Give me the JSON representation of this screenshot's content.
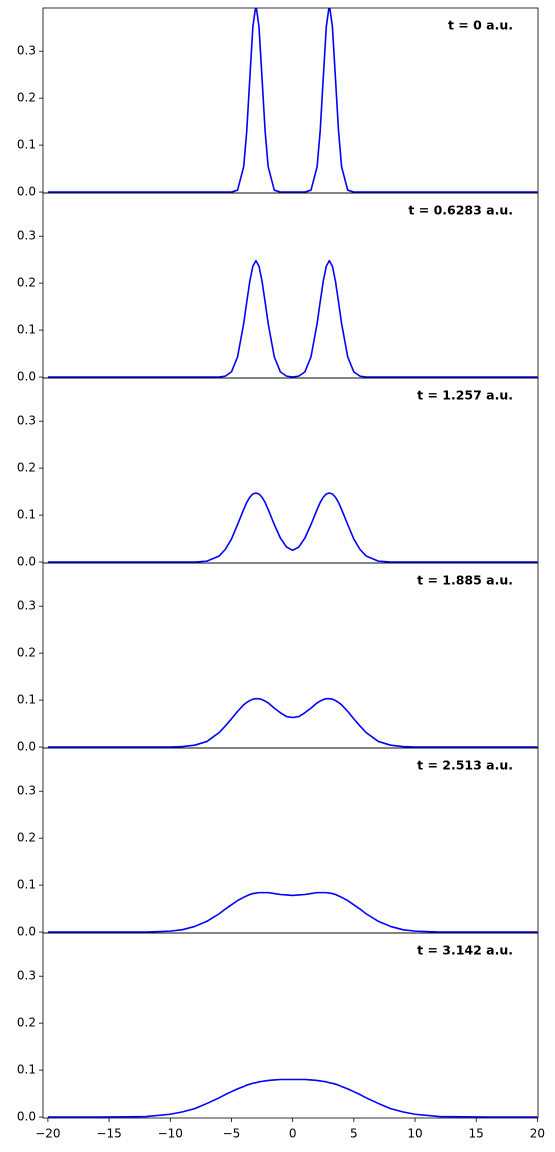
{
  "chart_data": [
    {
      "type": "line",
      "annotation": "t = 0 a.u.",
      "x": [
        -20,
        -16,
        -12,
        -10,
        -9,
        -8,
        -7,
        -6,
        -5.5,
        -5,
        -4.5,
        -4,
        -3.75,
        -3.5,
        -3.25,
        -3,
        -2.75,
        -2.5,
        -2.25,
        -2,
        -1.5,
        -1,
        -0.5,
        0,
        0.5,
        1,
        1.5,
        2,
        2.25,
        2.5,
        2.75,
        3,
        3.25,
        3.5,
        3.75,
        4,
        4.5,
        5,
        5.5,
        6,
        7,
        8,
        9,
        10,
        12,
        16,
        20
      ],
      "series": [
        {
          "color": "#0000ff",
          "values": [
            0,
            0,
            0,
            0,
            0,
            0,
            0,
            0,
            0,
            0,
            0.004,
            0.054,
            0.13,
            0.242,
            0.352,
            0.399,
            0.352,
            0.242,
            0.13,
            0.054,
            0.004,
            0,
            0,
            0,
            0,
            0,
            0.004,
            0.054,
            0.13,
            0.242,
            0.352,
            0.399,
            0.352,
            0.242,
            0.13,
            0.054,
            0.004,
            0,
            0,
            0,
            0,
            0,
            0,
            0,
            0,
            0,
            0
          ]
        }
      ],
      "xlim": [
        -20.4,
        20.05
      ],
      "ylim": [
        -0.002,
        0.392
      ],
      "yticks": [
        {
          "value": 0,
          "label": "0.0"
        },
        0.1,
        0.2,
        0.3
      ]
    },
    {
      "type": "line",
      "annotation": "t = 0.6283 a.u.",
      "x": [
        -20,
        -16,
        -12,
        -10,
        -9,
        -8,
        -7,
        -6,
        -5.5,
        -5,
        -4.5,
        -4,
        -3.75,
        -3.5,
        -3.25,
        -3,
        -2.75,
        -2.5,
        -2.25,
        -2,
        -1.5,
        -1,
        -0.5,
        0,
        0.5,
        1,
        1.5,
        2,
        2.25,
        2.5,
        2.75,
        3,
        3.25,
        3.5,
        3.75,
        4,
        4.5,
        5,
        5.5,
        6,
        7,
        8,
        9,
        10,
        12,
        16,
        20
      ],
      "series": [
        {
          "color": "#0000ff",
          "values": [
            0,
            0,
            0,
            0,
            0,
            0,
            0,
            0,
            0.002,
            0.011,
            0.043,
            0.114,
            0.16,
            0.204,
            0.236,
            0.248,
            0.236,
            0.204,
            0.16,
            0.114,
            0.043,
            0.011,
            0.002,
            0,
            0.002,
            0.011,
            0.043,
            0.114,
            0.16,
            0.204,
            0.236,
            0.248,
            0.236,
            0.204,
            0.16,
            0.114,
            0.043,
            0.011,
            0.002,
            0,
            0,
            0,
            0,
            0,
            0,
            0,
            0
          ]
        }
      ],
      "xlim": [
        -20.4,
        20.05
      ],
      "ylim": [
        -0.002,
        0.392
      ],
      "yticks": [
        {
          "value": 0,
          "label": "0.0"
        },
        0.1,
        0.2,
        0.3
      ]
    },
    {
      "type": "line",
      "annotation": "t = 1.257 a.u.",
      "x": [
        -20,
        -16,
        -12,
        -10,
        -9,
        -8,
        -7,
        -6,
        -5.5,
        -5,
        -4.5,
        -4,
        -3.75,
        -3.5,
        -3.25,
        -3,
        -2.75,
        -2.5,
        -2.25,
        -2,
        -1.5,
        -1,
        -0.5,
        0,
        0.5,
        1,
        1.5,
        2,
        2.25,
        2.5,
        2.75,
        3,
        3.25,
        3.5,
        3.75,
        4,
        4.5,
        5,
        5.5,
        6,
        7,
        8,
        9,
        10,
        12,
        16,
        20
      ],
      "series": [
        {
          "color": "#0000ff",
          "values": [
            0,
            0,
            0,
            0,
            0,
            0,
            0.002,
            0.013,
            0.027,
            0.049,
            0.08,
            0.112,
            0.127,
            0.138,
            0.145,
            0.147,
            0.145,
            0.138,
            0.127,
            0.112,
            0.08,
            0.051,
            0.032,
            0.025,
            0.032,
            0.051,
            0.08,
            0.112,
            0.127,
            0.138,
            0.145,
            0.147,
            0.145,
            0.138,
            0.127,
            0.112,
            0.08,
            0.049,
            0.027,
            0.013,
            0.002,
            0,
            0,
            0,
            0,
            0,
            0
          ]
        }
      ],
      "xlim": [
        -20.4,
        20.05
      ],
      "ylim": [
        -0.002,
        0.392
      ],
      "yticks": [
        {
          "value": 0,
          "label": "0.0"
        },
        0.1,
        0.2,
        0.3
      ]
    },
    {
      "type": "line",
      "annotation": "t = 1.885 a.u.",
      "x": [
        -20,
        -16,
        -12,
        -10,
        -9,
        -8,
        -7,
        -6,
        -5.5,
        -5,
        -4.5,
        -4,
        -3.75,
        -3.5,
        -3.25,
        -3,
        -2.75,
        -2.5,
        -2.25,
        -2,
        -1.5,
        -1,
        -0.5,
        0,
        0.5,
        1,
        1.5,
        2,
        2.25,
        2.5,
        2.75,
        3,
        3.25,
        3.5,
        3.75,
        4,
        4.5,
        5,
        5.5,
        6,
        7,
        8,
        9,
        10,
        12,
        16,
        20
      ],
      "series": [
        {
          "color": "#0000ff",
          "values": [
            0,
            0,
            0,
            0,
            0.001,
            0.004,
            0.012,
            0.031,
            0.045,
            0.06,
            0.076,
            0.09,
            0.095,
            0.099,
            0.102,
            0.103,
            0.103,
            0.101,
            0.098,
            0.094,
            0.083,
            0.073,
            0.065,
            0.063,
            0.065,
            0.073,
            0.083,
            0.094,
            0.098,
            0.101,
            0.103,
            0.103,
            0.102,
            0.099,
            0.095,
            0.09,
            0.076,
            0.06,
            0.045,
            0.031,
            0.012,
            0.004,
            0.001,
            0,
            0,
            0,
            0
          ]
        }
      ],
      "xlim": [
        -20.4,
        20.05
      ],
      "ylim": [
        -0.002,
        0.392
      ],
      "yticks": [
        {
          "value": 0,
          "label": "0.0"
        },
        0.1,
        0.2,
        0.3
      ]
    },
    {
      "type": "line",
      "annotation": "t = 2.513 a.u.",
      "x": [
        -20,
        -16,
        -12,
        -10,
        -9,
        -8,
        -7,
        -6,
        -5.5,
        -5,
        -4.5,
        -4,
        -3.75,
        -3.5,
        -3.25,
        -3,
        -2.75,
        -2.5,
        -2.25,
        -2,
        -1.5,
        -1,
        -0.5,
        0,
        0.5,
        1,
        1.5,
        2,
        2.25,
        2.5,
        2.75,
        3,
        3.25,
        3.5,
        3.75,
        4,
        4.5,
        5,
        5.5,
        6,
        7,
        8,
        9,
        10,
        12,
        16,
        20
      ],
      "series": [
        {
          "color": "#0000ff",
          "values": [
            0,
            0,
            0,
            0.002,
            0.005,
            0.012,
            0.023,
            0.039,
            0.049,
            0.058,
            0.067,
            0.074,
            0.077,
            0.08,
            0.082,
            0.083,
            0.084,
            0.084,
            0.084,
            0.084,
            0.082,
            0.08,
            0.079,
            0.078,
            0.079,
            0.08,
            0.082,
            0.084,
            0.084,
            0.084,
            0.084,
            0.083,
            0.082,
            0.08,
            0.077,
            0.074,
            0.067,
            0.058,
            0.049,
            0.039,
            0.023,
            0.012,
            0.005,
            0.002,
            0,
            0,
            0
          ]
        }
      ],
      "xlim": [
        -20.4,
        20.05
      ],
      "ylim": [
        -0.002,
        0.392
      ],
      "yticks": [
        {
          "value": 0,
          "label": "0.0"
        },
        0.1,
        0.2,
        0.3
      ]
    },
    {
      "type": "line",
      "annotation": "t = 3.142 a.u.",
      "x": [
        -20,
        -16,
        -12,
        -10,
        -9,
        -8,
        -7,
        -6,
        -5.5,
        -5,
        -4.5,
        -4,
        -3.75,
        -3.5,
        -3.25,
        -3,
        -2.75,
        -2.5,
        -2.25,
        -2,
        -1.5,
        -1,
        -0.5,
        0,
        0.5,
        1,
        1.5,
        2,
        2.25,
        2.5,
        2.75,
        3,
        3.25,
        3.5,
        3.75,
        4,
        4.5,
        5,
        5.5,
        6,
        7,
        8,
        9,
        10,
        12,
        16,
        20
      ],
      "series": [
        {
          "color": "#0000ff",
          "values": [
            0,
            0,
            0.001,
            0.006,
            0.011,
            0.018,
            0.029,
            0.041,
            0.048,
            0.054,
            0.06,
            0.065,
            0.068,
            0.07,
            0.072,
            0.073,
            0.075,
            0.076,
            0.077,
            0.078,
            0.079,
            0.08,
            0.08,
            0.08,
            0.08,
            0.08,
            0.079,
            0.078,
            0.077,
            0.076,
            0.075,
            0.073,
            0.072,
            0.07,
            0.068,
            0.065,
            0.06,
            0.054,
            0.048,
            0.041,
            0.029,
            0.018,
            0.011,
            0.006,
            0.001,
            0,
            0
          ]
        }
      ],
      "xlim": [
        -20.4,
        20.05
      ],
      "ylim": [
        -0.002,
        0.392
      ],
      "yticks": [
        {
          "value": 0,
          "label": "0.0"
        },
        0.1,
        0.2,
        0.3
      ],
      "xticks": [
        {
          "value": -20,
          "label": "−20"
        },
        {
          "value": -15,
          "label": "−15"
        },
        {
          "value": -10,
          "label": "−10"
        },
        {
          "value": -5,
          "label": "−5"
        },
        0,
        5,
        10,
        15,
        20
      ]
    }
  ]
}
